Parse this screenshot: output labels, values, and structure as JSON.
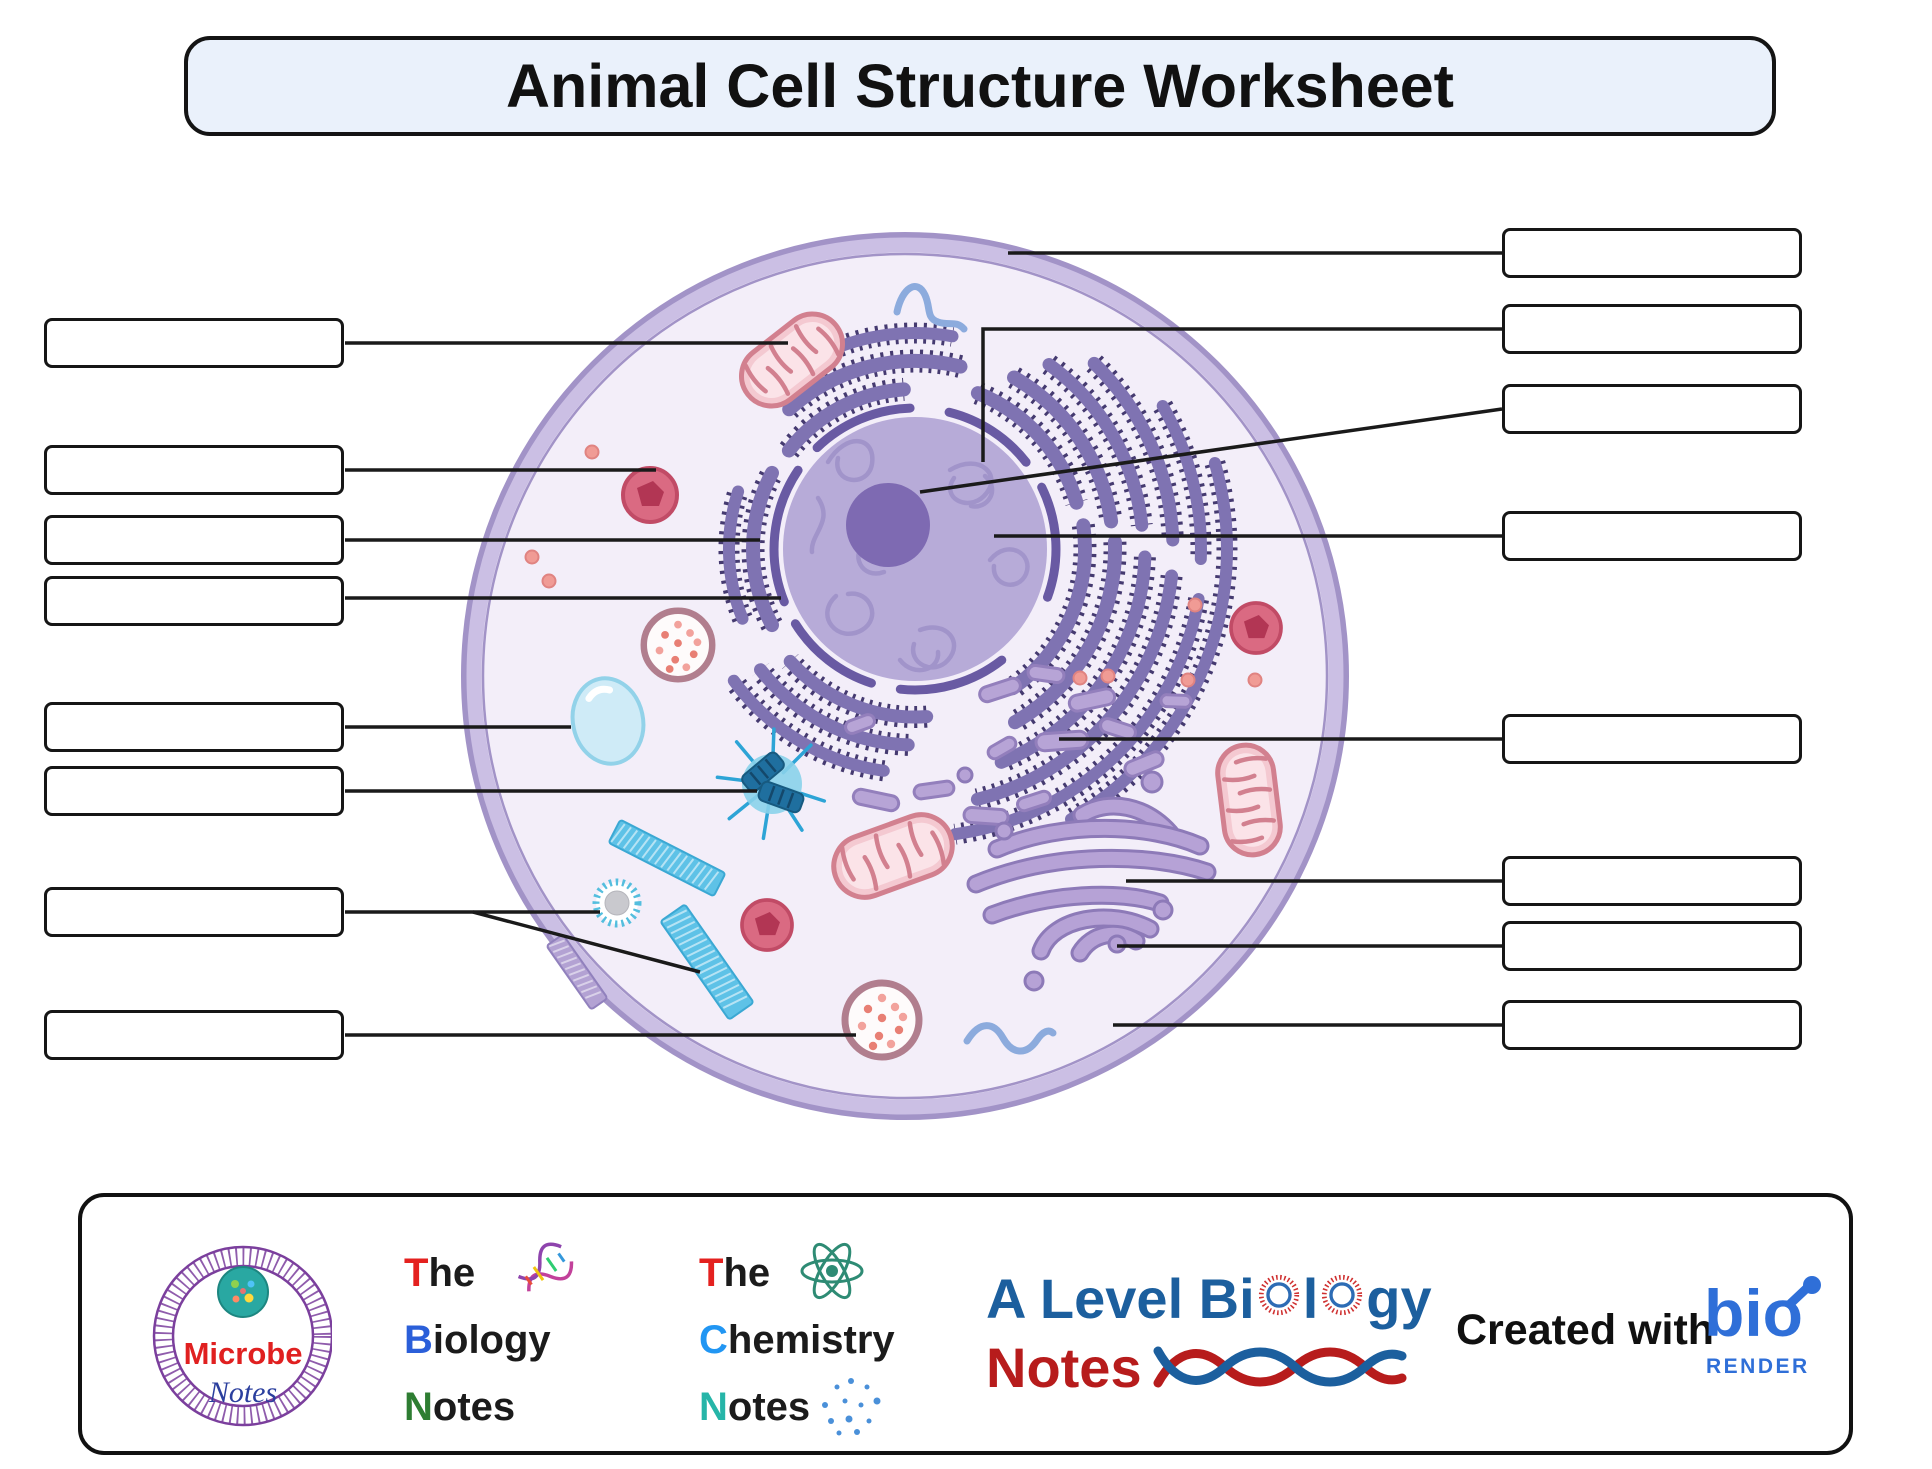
{
  "title": "Animal Cell Structure Worksheet",
  "worksheet": {
    "left_box_count": 8,
    "right_box_count": 8,
    "box_value": ""
  },
  "diagram": {
    "organelles": [
      "cell-membrane",
      "cytoplasm",
      "nucleus",
      "nucleolus",
      "chromatin",
      "nuclear-envelope",
      "rough-endoplasmic-reticulum",
      "smooth-endoplasmic-reticulum",
      "golgi-apparatus",
      "golgi-vesicles",
      "mitochondrion",
      "lysosome",
      "peroxisome",
      "vacuole",
      "centrosome",
      "centriole",
      "cytoskeleton-microtubules",
      "ribosomes",
      "rna-strand"
    ]
  },
  "footer": {
    "microbe": {
      "word1": "Microbe",
      "word2": "Notes"
    },
    "biology": {
      "l1i": "T",
      "l1r": "he",
      "l2i": "B",
      "l2r": "iology",
      "l3i": "N",
      "l3r": "otes"
    },
    "chemistry": {
      "l1i": "T",
      "l1r": "he",
      "l2i": "C",
      "l2r": "hemistry",
      "l3i": "N",
      "l3r": "otes"
    },
    "alevel": {
      "p1": "A Level Bi",
      "p2": "l",
      "p3": "gy",
      "notes": "Notes"
    },
    "created_with": "Created with",
    "biorender": {
      "word": "bio",
      "sub": "RENDER"
    }
  },
  "colors": {
    "title_bg": "#eaf1fb",
    "membrane": "#cbbfe4",
    "membrane_edge": "#a293c7",
    "cytoplasm": "#f3eef9",
    "nucleus": "#b7abd8",
    "nucleolus": "#7e6ab2",
    "rough_er": "#7f73b2",
    "golgi": "#b6a2d6",
    "mitochondrion": "#f4c9d1",
    "lysosome": "#da6a82",
    "centrosome": "#8ad2ea",
    "cytoskeleton": "#5ec2e7",
    "alevel_blue": "#1c5f9e",
    "alevel_red": "#b71c1c",
    "biorender_blue": "#2f6fd8"
  }
}
